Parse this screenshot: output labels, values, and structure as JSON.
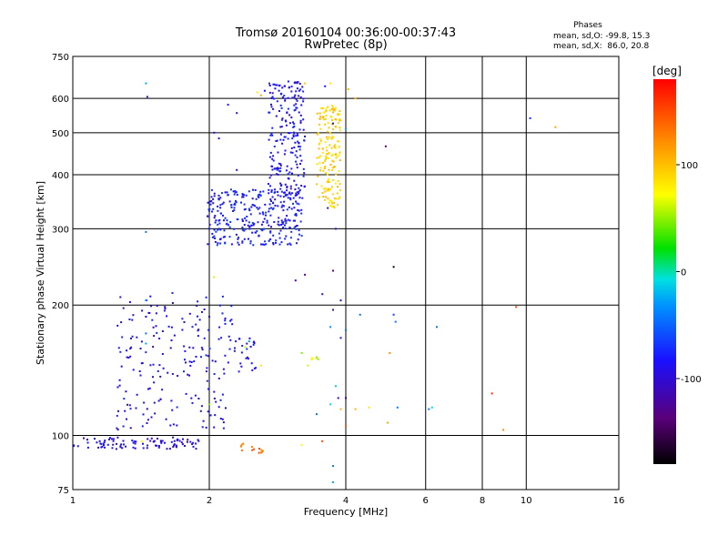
{
  "chart_data": {
    "type": "scatter",
    "title": "Tromsø 20160104 00:36:00-00:37:43",
    "subtitle": "RwPretec (8p)",
    "xlabel": "Frequency [MHz]",
    "ylabel": "Stationary phase Virtual Height [km]",
    "x_scale": "log",
    "y_scale": "log",
    "xlim": [
      1,
      16
    ],
    "ylim": [
      75,
      750
    ],
    "x_ticks": [
      1,
      2,
      4,
      6,
      8,
      10,
      16
    ],
    "x_tick_labels": [
      "1",
      "2",
      "4",
      "6",
      "8",
      "10",
      "16"
    ],
    "y_ticks": [
      75,
      100,
      200,
      300,
      400,
      500,
      600,
      750
    ],
    "y_tick_labels": [
      "75",
      "100",
      "200",
      "300",
      "400",
      "500",
      "600",
      "750"
    ],
    "x_gridlines": [
      2,
      4,
      6,
      8,
      10
    ],
    "y_gridlines": [
      100,
      200,
      300,
      400,
      500,
      600
    ],
    "grid": true,
    "stats": {
      "heading": "Phases",
      "line_o": "mean, sd,O: -99.8, 15.3",
      "line_x": "mean, sd,X:  86.0, 20.8"
    },
    "colorbar": {
      "label": "[deg]",
      "range": [
        -180,
        180
      ],
      "ticks": [
        100,
        0,
        -100
      ],
      "tick_labels": [
        "100",
        "0",
        "-100"
      ]
    },
    "series": [
      {
        "traces": [
          {
            "type": "band",
            "x": [
              1.0,
              1.9
            ],
            "y": [
              93,
              99
            ],
            "n": 95,
            "phase": -108
          },
          {
            "type": "band",
            "x": [
              1.25,
              2.25
            ],
            "y": [
              103,
              215
            ],
            "n": 200,
            "phase": -105
          },
          {
            "type": "band",
            "x": [
              1.98,
              3.2
            ],
            "y": [
              275,
              370
            ],
            "n": 300,
            "phase": -95
          },
          {
            "type": "band",
            "x": [
              2.7,
              3.25
            ],
            "y": [
              350,
              660
            ],
            "n": 220,
            "phase": -102
          },
          {
            "type": "band",
            "x": [
              2.25,
              2.55
            ],
            "y": [
              138,
              168
            ],
            "n": 25,
            "phase": -100
          },
          {
            "type": "band",
            "x": [
              3.45,
              3.9
            ],
            "y": [
              335,
              580
            ],
            "n": 170,
            "phase": 90
          },
          {
            "type": "band",
            "x": [
              2.35,
              2.65
            ],
            "y": [
              91,
              96
            ],
            "n": 14,
            "phase": 135
          },
          {
            "type": "band",
            "x": [
              3.35,
              3.48
            ],
            "y": [
              148,
              158
            ],
            "n": 6,
            "phase": 60
          }
        ],
        "points": [
          {
            "x": 1.45,
            "y": 650,
            "phase": -40
          },
          {
            "x": 1.46,
            "y": 605,
            "phase": -95
          },
          {
            "x": 1.45,
            "y": 295,
            "phase": -60
          },
          {
            "x": 1.45,
            "y": 205,
            "phase": -50
          },
          {
            "x": 1.45,
            "y": 188,
            "phase": -100
          },
          {
            "x": 1.45,
            "y": 172,
            "phase": -60
          },
          {
            "x": 1.45,
            "y": 163,
            "phase": -40
          },
          {
            "x": 1.42,
            "y": 97,
            "phase": 70
          },
          {
            "x": 2.2,
            "y": 580,
            "phase": -105
          },
          {
            "x": 2.3,
            "y": 555,
            "phase": -105
          },
          {
            "x": 2.1,
            "y": 485,
            "phase": -105
          },
          {
            "x": 2.05,
            "y": 500,
            "phase": -110
          },
          {
            "x": 2.05,
            "y": 232,
            "phase": 60
          },
          {
            "x": 2.3,
            "y": 410,
            "phase": -100
          },
          {
            "x": 2.55,
            "y": 620,
            "phase": 80
          },
          {
            "x": 2.6,
            "y": 610,
            "phase": 110
          },
          {
            "x": 2.65,
            "y": 625,
            "phase": -100
          },
          {
            "x": 2.85,
            "y": 625,
            "phase": -100
          },
          {
            "x": 3.6,
            "y": 640,
            "phase": -100
          },
          {
            "x": 3.7,
            "y": 650,
            "phase": 80
          },
          {
            "x": 4.2,
            "y": 600,
            "phase": 100
          },
          {
            "x": 4.05,
            "y": 630,
            "phase": 105
          },
          {
            "x": 4.9,
            "y": 465,
            "phase": -140
          },
          {
            "x": 4.0,
            "y": 510,
            "phase": -40
          },
          {
            "x": 3.25,
            "y": 650,
            "phase": 95
          },
          {
            "x": 3.6,
            "y": 430,
            "phase": 90
          },
          {
            "x": 3.75,
            "y": 525,
            "phase": -100
          },
          {
            "x": 3.75,
            "y": 240,
            "phase": -130
          },
          {
            "x": 3.8,
            "y": 300,
            "phase": -120
          },
          {
            "x": 3.65,
            "y": 335,
            "phase": -110
          },
          {
            "x": 5.1,
            "y": 245,
            "phase": -170
          },
          {
            "x": 3.25,
            "y": 235,
            "phase": -130
          },
          {
            "x": 3.1,
            "y": 228,
            "phase": -125
          },
          {
            "x": 3.55,
            "y": 212,
            "phase": -110
          },
          {
            "x": 3.9,
            "y": 205,
            "phase": -110
          },
          {
            "x": 3.75,
            "y": 195,
            "phase": -100
          },
          {
            "x": 4.3,
            "y": 190,
            "phase": -60
          },
          {
            "x": 5.1,
            "y": 190,
            "phase": -80
          },
          {
            "x": 5.15,
            "y": 183,
            "phase": -60
          },
          {
            "x": 6.35,
            "y": 178,
            "phase": -60
          },
          {
            "x": 3.7,
            "y": 178,
            "phase": -50
          },
          {
            "x": 4.0,
            "y": 175,
            "phase": -60
          },
          {
            "x": 3.9,
            "y": 168,
            "phase": -100
          },
          {
            "x": 5.0,
            "y": 155,
            "phase": 120
          },
          {
            "x": 3.2,
            "y": 155,
            "phase": 45
          },
          {
            "x": 3.3,
            "y": 145,
            "phase": 60
          },
          {
            "x": 3.8,
            "y": 130,
            "phase": -30
          },
          {
            "x": 3.85,
            "y": 122,
            "phase": -110
          },
          {
            "x": 4.0,
            "y": 122,
            "phase": -130
          },
          {
            "x": 3.7,
            "y": 118,
            "phase": -20
          },
          {
            "x": 3.9,
            "y": 115,
            "phase": 100
          },
          {
            "x": 4.2,
            "y": 115,
            "phase": 100
          },
          {
            "x": 4.5,
            "y": 116,
            "phase": 80
          },
          {
            "x": 3.45,
            "y": 112,
            "phase": -60
          },
          {
            "x": 5.2,
            "y": 116,
            "phase": -60
          },
          {
            "x": 6.1,
            "y": 115,
            "phase": -60
          },
          {
            "x": 6.2,
            "y": 116,
            "phase": -20
          },
          {
            "x": 4.95,
            "y": 107,
            "phase": 110
          },
          {
            "x": 4.0,
            "y": 105,
            "phase": 140
          },
          {
            "x": 8.4,
            "y": 125,
            "phase": 160
          },
          {
            "x": 8.9,
            "y": 103,
            "phase": 120
          },
          {
            "x": 9.5,
            "y": 198,
            "phase": 150
          },
          {
            "x": 10.2,
            "y": 540,
            "phase": -90
          },
          {
            "x": 11.6,
            "y": 515,
            "phase": 110
          },
          {
            "x": 3.2,
            "y": 95,
            "phase": 70
          },
          {
            "x": 3.55,
            "y": 97,
            "phase": 150
          },
          {
            "x": 3.75,
            "y": 85,
            "phase": -60
          },
          {
            "x": 3.75,
            "y": 78,
            "phase": -40
          },
          {
            "x": 2.45,
            "y": 165,
            "phase": -40
          },
          {
            "x": 2.4,
            "y": 160,
            "phase": 60
          },
          {
            "x": 2.6,
            "y": 145,
            "phase": 80
          },
          {
            "x": 2.0,
            "y": 118,
            "phase": 40
          }
        ]
      }
    ]
  }
}
